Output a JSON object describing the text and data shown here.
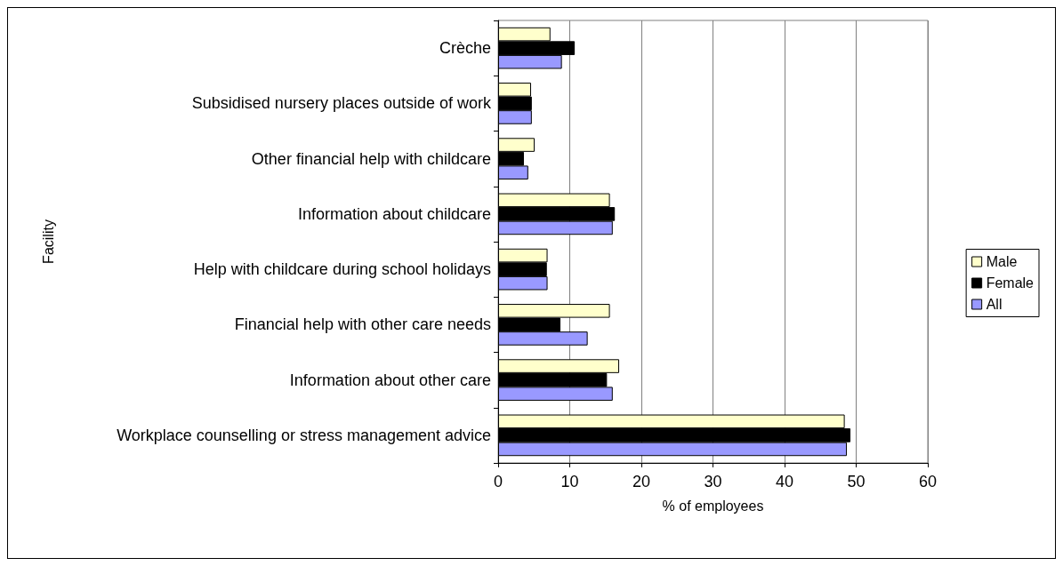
{
  "chart_data": {
    "type": "bar",
    "orientation": "horizontal",
    "xlabel": "% of employees",
    "ylabel": "Facility",
    "categories": [
      "Crèche",
      "Subsidised nursery places outside of work",
      "Other financial help with childcare",
      "Information about childcare",
      "Help with childcare during school holidays",
      "Financial help with other care needs",
      "Information about other care",
      "Workplace counselling or stress management advice"
    ],
    "series": [
      {
        "name": "Male",
        "color": "#ffffcc",
        "values": [
          7.3,
          4.6,
          5.1,
          15.6,
          6.9,
          15.6,
          16.9,
          48.4
        ]
      },
      {
        "name": "Female",
        "color": "#000000",
        "values": [
          10.7,
          4.7,
          3.6,
          16.3,
          6.8,
          8.7,
          15.2,
          49.2
        ]
      },
      {
        "name": "All",
        "color": "#9999ff",
        "values": [
          8.9,
          4.7,
          4.2,
          16.0,
          6.9,
          12.5,
          16.0,
          48.7
        ]
      }
    ],
    "xlim": [
      0,
      60
    ],
    "xticks": [
      0,
      10,
      20,
      30,
      40,
      50,
      60
    ],
    "grid": "x",
    "legend": "right"
  }
}
